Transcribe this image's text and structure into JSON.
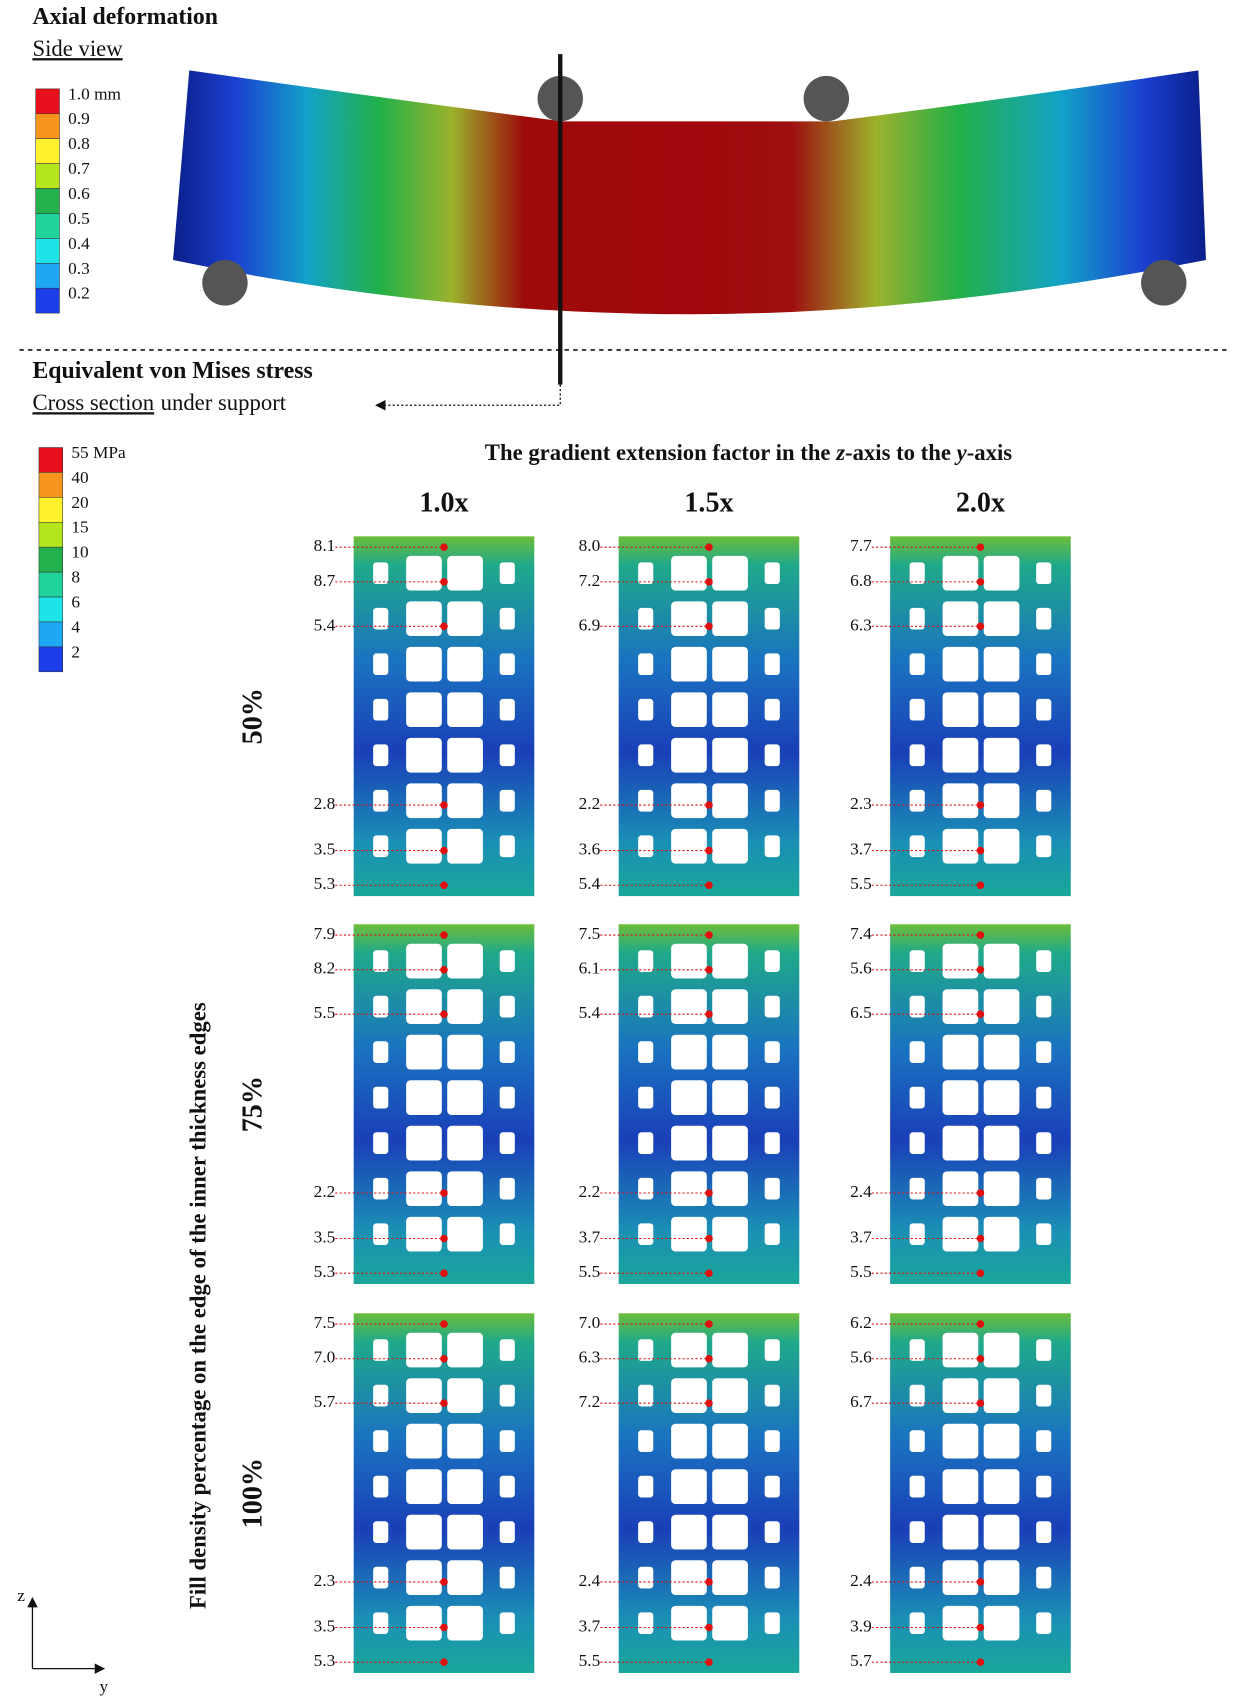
{
  "deformation": {
    "title": "Axial deformation",
    "subtitle": "Side view",
    "legend": [
      {
        "label": "1.0 mm",
        "color": "#e8101c"
      },
      {
        "label": "0.9",
        "color": "#f7941d"
      },
      {
        "label": "0.8",
        "color": "#fff22d"
      },
      {
        "label": "0.7",
        "color": "#b5e61d"
      },
      {
        "label": "0.6",
        "color": "#22b14c"
      },
      {
        "label": "0.5",
        "color": "#1fd39a"
      },
      {
        "label": "0.4",
        "color": "#1ee3e8"
      },
      {
        "label": "0.3",
        "color": "#1ea7f2"
      },
      {
        "label": "0.2",
        "color": "#1c3ee8"
      }
    ]
  },
  "stress": {
    "title": "Equivalent von Mises stress",
    "subtitle_underlined": "Cross section",
    "subtitle_rest": "under support",
    "legend": [
      {
        "label": "55 MPa",
        "color": "#e8101c"
      },
      {
        "label": "40",
        "color": "#f7941d"
      },
      {
        "label": "20",
        "color": "#fff22d"
      },
      {
        "label": "15",
        "color": "#b5e61d"
      },
      {
        "label": "10",
        "color": "#22b14c"
      },
      {
        "label": "8",
        "color": "#1fd39a"
      },
      {
        "label": "6",
        "color": "#1ee3e8"
      },
      {
        "label": "4",
        "color": "#1ea7f2"
      },
      {
        "label": "2",
        "color": "#1c3ee8"
      }
    ]
  },
  "grid": {
    "header": [
      "The gradient extension factor in the ",
      "z",
      "-axis to the ",
      "y",
      "-axis"
    ],
    "columns": [
      "1.0x",
      "1.5x",
      "2.0x"
    ],
    "rows": [
      "50%",
      "75%",
      "100%"
    ],
    "row_axis_label": "Fill density percentage on the edge of the inner thickness edges",
    "panels": [
      [
        [
          "8.1",
          "8.7",
          "5.4",
          "2.8",
          "3.5",
          "5.3"
        ],
        [
          "8.0",
          "7.2",
          "6.9",
          "2.2",
          "3.6",
          "5.4"
        ],
        [
          "7.7",
          "6.8",
          "6.3",
          "2.3",
          "3.7",
          "5.5"
        ]
      ],
      [
        [
          "7.9",
          "8.2",
          "5.5",
          "2.2",
          "3.5",
          "5.3"
        ],
        [
          "7.5",
          "6.1",
          "5.4",
          "2.2",
          "3.7",
          "5.5"
        ],
        [
          "7.4",
          "5.6",
          "6.5",
          "2.4",
          "3.7",
          "5.5"
        ]
      ],
      [
        [
          "7.5",
          "7.0",
          "5.7",
          "2.3",
          "3.5",
          "5.3"
        ],
        [
          "7.0",
          "6.3",
          "7.2",
          "2.4",
          "3.7",
          "5.5"
        ],
        [
          "6.2",
          "5.6",
          "6.7",
          "2.4",
          "3.9",
          "5.7"
        ]
      ]
    ]
  },
  "axes": {
    "vertical": "z",
    "horizontal": "y"
  }
}
